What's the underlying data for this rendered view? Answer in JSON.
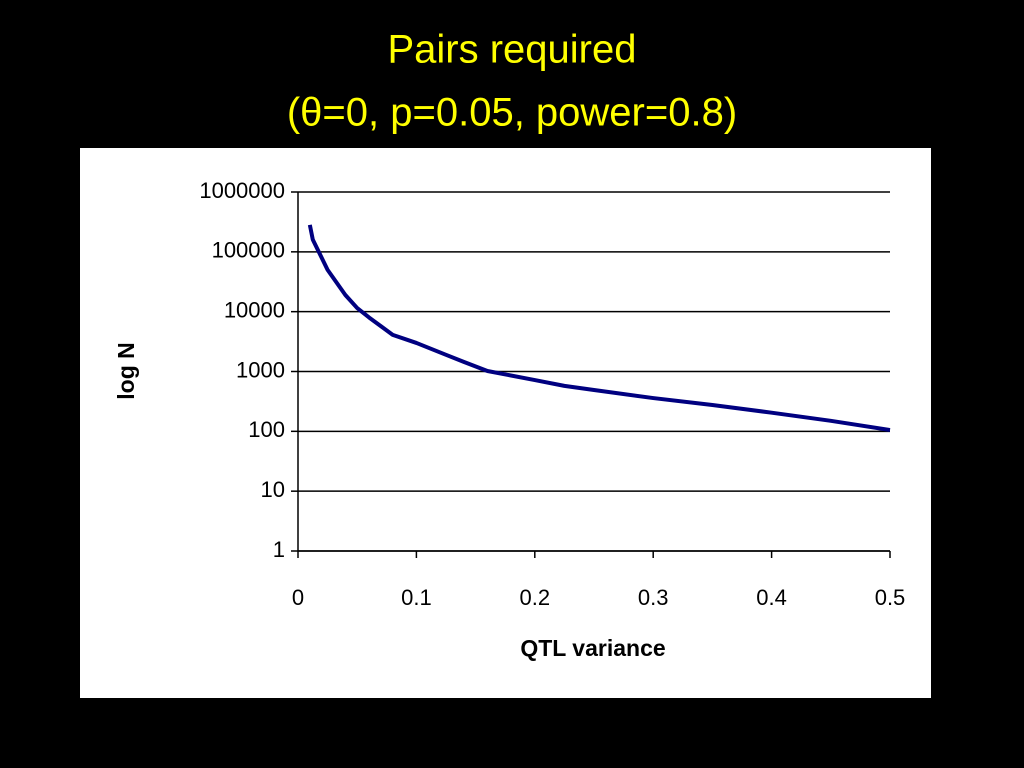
{
  "chart_data": {
    "type": "line",
    "title": "Pairs required",
    "subtitle": "(θ=0, p=0.05, power=0.8)",
    "x_label": "QTL variance",
    "y_label": "log N",
    "log_y": true,
    "grid": true,
    "x": [
      0.01,
      0.0125,
      0.025,
      0.04,
      0.05,
      0.06,
      0.08,
      0.1,
      0.125,
      0.14,
      0.16,
      0.2,
      0.225,
      0.25,
      0.3,
      0.35,
      0.4,
      0.45,
      0.5
    ],
    "series": [
      {
        "name": "log N",
        "color": "#000080",
        "values": [
          282000,
          160000,
          50000,
          19000,
          11500,
          8000,
          4100,
          3000,
          1900,
          1450,
          1020,
          720,
          575,
          490,
          360,
          275,
          205,
          150,
          105
        ]
      }
    ],
    "xlim": [
      0,
      0.5
    ],
    "xticks": [
      0,
      0.1,
      0.2,
      0.3,
      0.4,
      0.5
    ],
    "ylim": [
      1,
      1000000
    ],
    "yticks": [
      1,
      10,
      100,
      1000,
      10000,
      100000,
      1000000
    ]
  }
}
